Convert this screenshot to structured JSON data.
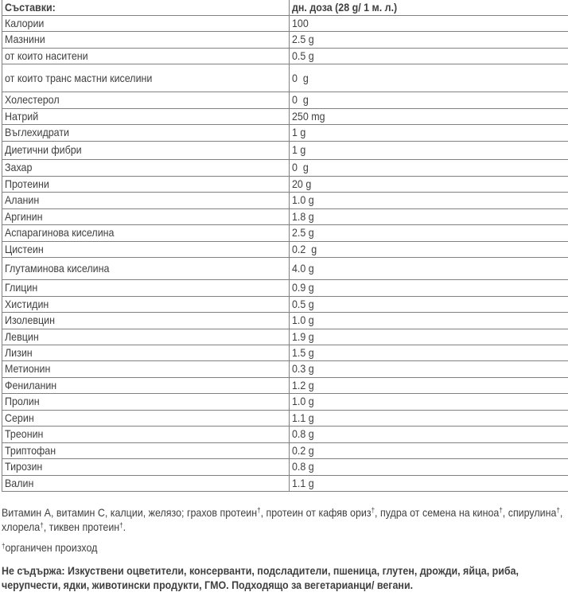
{
  "colors": {
    "background": "#ffffff",
    "text": "#3f3f3f",
    "table_border": "#818181"
  },
  "chart_data": {
    "type": "table",
    "title": "",
    "columns": [
      "Съставки:",
      "дн. доза (28 g/ 1 м. л.)"
    ],
    "rows": [
      [
        "Калории",
        "100"
      ],
      [
        "Мазнини",
        "2.5 g"
      ],
      [
        "от които наситени",
        "0.5 g"
      ],
      [
        "от които транс мастни киселини",
        "0  g"
      ],
      [
        "Холестерол",
        "0  g"
      ],
      [
        "Натрий",
        "250 mg"
      ],
      [
        "Въглехидрати",
        "1 g"
      ],
      [
        "Диетични фибри",
        "1 g"
      ],
      [
        "Захар",
        "0  g"
      ],
      [
        "Протеини",
        "20 g"
      ],
      [
        "Аланин",
        "1.0 g"
      ],
      [
        "Аргинин",
        "1.8 g"
      ],
      [
        "Аспарагинова киселина",
        "2.5 g"
      ],
      [
        "Цистеин",
        "0.2  g"
      ],
      [
        "Глутаминова киселина",
        "4.0 g"
      ],
      [
        "Глицин",
        "0.9 g"
      ],
      [
        "Хистидин",
        "0.5 g"
      ],
      [
        "Изолевцин",
        "1.0 g"
      ],
      [
        "Левцин",
        "1.9 g"
      ],
      [
        "Лизин",
        "1.5 g"
      ],
      [
        "Метионин",
        "0.3 g"
      ],
      [
        "Фениланин",
        "1.2 g"
      ],
      [
        "Пролин",
        "1.0 g"
      ],
      [
        "Серин",
        "1.1 g"
      ],
      [
        "Треонин",
        "0.8 g"
      ],
      [
        "Триптофан",
        "0.2 g"
      ],
      [
        "Тирозин",
        "0.8 g"
      ],
      [
        "Валин",
        "1.1 g"
      ]
    ]
  },
  "table": {
    "header": {
      "label": "Съставки:",
      "value": "дн. доза (28 g/ 1 м. л.)"
    }
  },
  "ingredients": {
    "segments": [
      {
        "text": "Витамин А, витамин С, калции, желязо; грахов протеин"
      },
      {
        "text": "†",
        "sup": true
      },
      {
        "text": ", протеин от кафяв ориз"
      },
      {
        "text": "†",
        "sup": true
      },
      {
        "text": ", пудра от семена на киноа"
      },
      {
        "text": "†",
        "sup": true
      },
      {
        "text": ", спирулина"
      },
      {
        "text": "†",
        "sup": true
      },
      {
        "text": ", хлорела"
      },
      {
        "text": "†",
        "sup": true
      },
      {
        "text": ", тиквен протеин"
      },
      {
        "text": "†",
        "sup": true
      },
      {
        "text": "."
      }
    ]
  },
  "footnote": {
    "segments": [
      {
        "text": "†",
        "sup": true
      },
      {
        "text": "органичен произход"
      }
    ]
  },
  "disclaimer": {
    "text": "Не съдържа: Изкуствени оцветители, консерванти, подсладители, пшеница, глутен, дрожди, яйца, риба, черупчести, ядки, животински продукти, ГМО. Подходящо за вегетарианци/ вегани."
  }
}
